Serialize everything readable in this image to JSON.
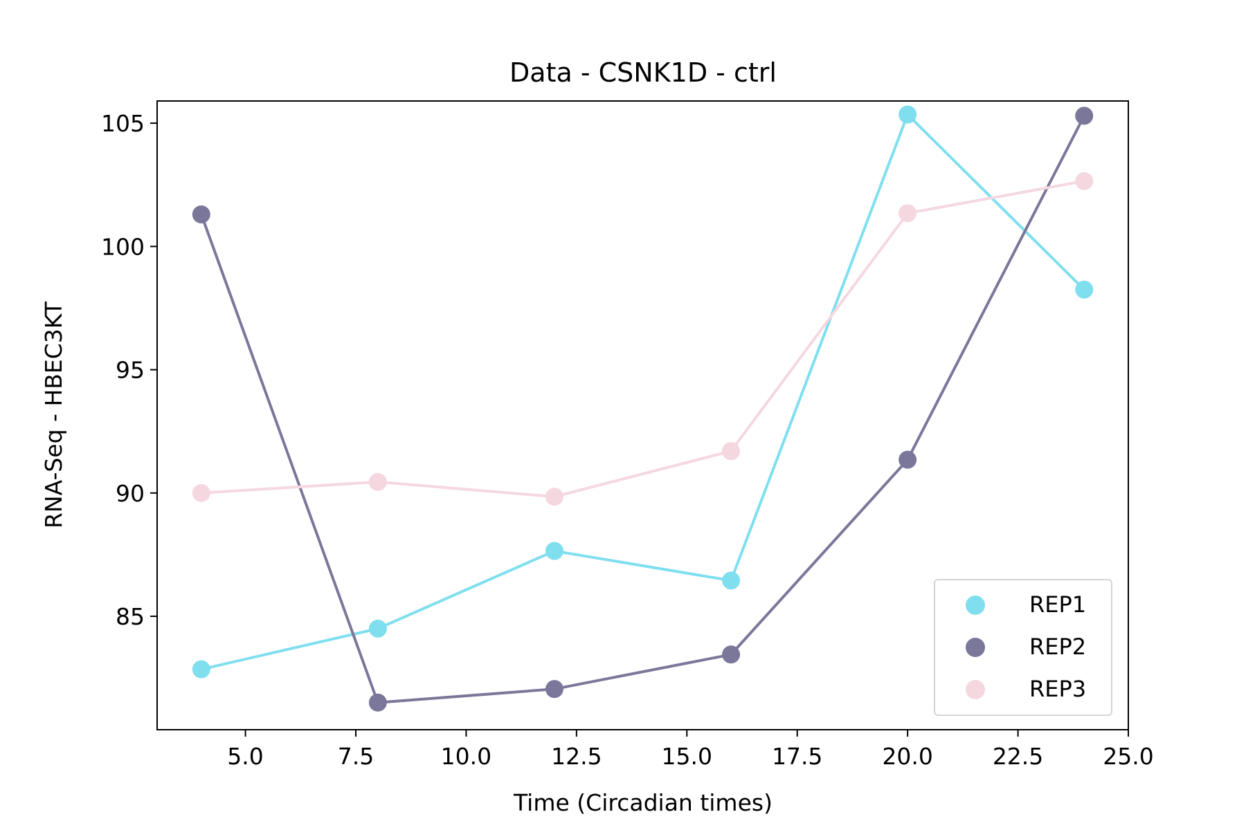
{
  "chart_data": {
    "type": "line",
    "title": "Data - CSNK1D - ctrl",
    "xlabel": "Time (Circadian times)",
    "ylabel": "RNA-Seq - HBEC3KT",
    "xlim": [
      3.0,
      25.0
    ],
    "ylim": [
      80.4,
      105.9
    ],
    "xticks": [
      5.0,
      7.5,
      10.0,
      12.5,
      15.0,
      17.5,
      20.0,
      22.5,
      25.0
    ],
    "xtick_labels": [
      "5.0",
      "7.5",
      "10.0",
      "12.5",
      "15.0",
      "17.5",
      "20.0",
      "22.5",
      "25.0"
    ],
    "yticks": [
      85,
      90,
      95,
      100,
      105
    ],
    "ytick_labels": [
      "85",
      "90",
      "95",
      "100",
      "105"
    ],
    "grid": false,
    "legend_position": "lower-right",
    "x": [
      4,
      8,
      12,
      16,
      20,
      24
    ],
    "series": [
      {
        "name": "REP1",
        "color": "#7fdfef",
        "values": [
          82.85,
          84.5,
          87.65,
          86.45,
          105.35,
          98.25
        ]
      },
      {
        "name": "REP2",
        "color": "#7a779a",
        "values": [
          101.3,
          81.5,
          82.05,
          83.45,
          91.35,
          105.3
        ]
      },
      {
        "name": "REP3",
        "color": "#f5d7e0",
        "values": [
          90.0,
          90.45,
          89.85,
          91.7,
          101.35,
          102.65
        ]
      }
    ]
  }
}
